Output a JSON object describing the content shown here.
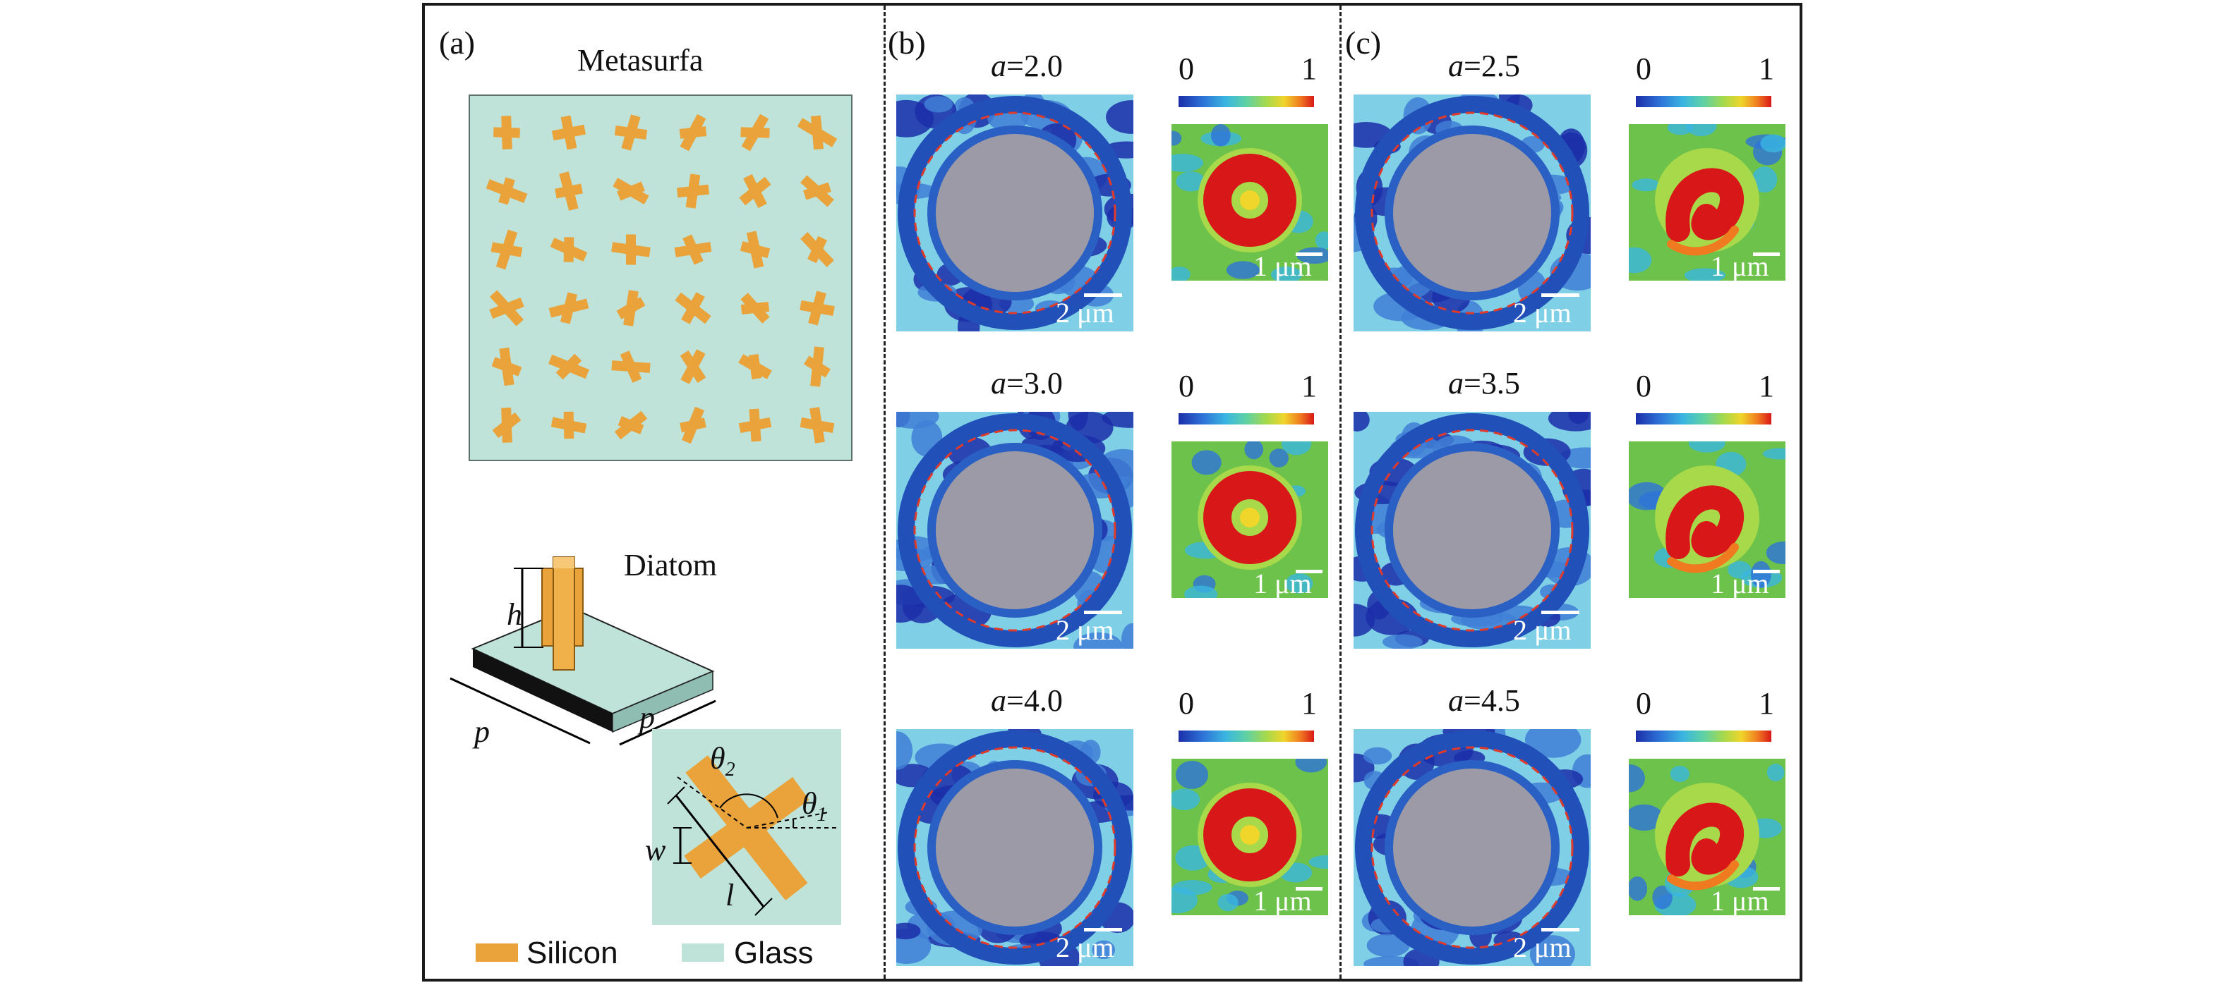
{
  "panels": {
    "a": {
      "label": "(a)",
      "metasurface_title": "Metasurfa",
      "diatom_title": "Diatom",
      "dims": {
        "h": "h",
        "p1": "p",
        "p2": "p",
        "w": "w",
        "l": "l",
        "theta2": "θ",
        "theta2_sub": "2",
        "theta1": "θ",
        "theta1_sub": "1"
      },
      "legend": {
        "silicon": "Silicon",
        "glass": "Glass"
      },
      "colors": {
        "silicon": "#e9a33a",
        "glass": "#bfe3d9"
      }
    },
    "b": {
      "label": "(b)",
      "rows": [
        {
          "a_label": "a",
          "a_value": "=2.0",
          "cbar_min": "0",
          "cbar_max": "1",
          "scale_large": "2 μm",
          "scale_small": "1 μm"
        },
        {
          "a_label": "a",
          "a_value": "=3.0",
          "cbar_min": "0",
          "cbar_max": "1",
          "scale_large": "2 μm",
          "scale_small": "1 μm"
        },
        {
          "a_label": "a",
          "a_value": "=4.0",
          "cbar_min": "0",
          "cbar_max": "1",
          "scale_large": "2 μm",
          "scale_small": "1 μm"
        }
      ]
    },
    "c": {
      "label": "(c)",
      "rows": [
        {
          "a_label": "a",
          "a_value": "=2.5",
          "cbar_min": "0",
          "cbar_max": "1",
          "scale_large": "2 μm",
          "scale_small": "1 μm"
        },
        {
          "a_label": "a",
          "a_value": "=3.5",
          "cbar_min": "0",
          "cbar_max": "1",
          "scale_large": "2 μm",
          "scale_small": "1 μm"
        },
        {
          "a_label": "a",
          "a_value": "=4.5",
          "cbar_min": "0",
          "cbar_max": "1",
          "scale_large": "2 μm",
          "scale_small": "1 μm"
        }
      ]
    }
  },
  "field_colors": {
    "low": "#1b2ea8",
    "mid": "#3bb6e0",
    "green": "#6cc24a",
    "high": "#d81818",
    "gray": "#9c9aa6"
  }
}
